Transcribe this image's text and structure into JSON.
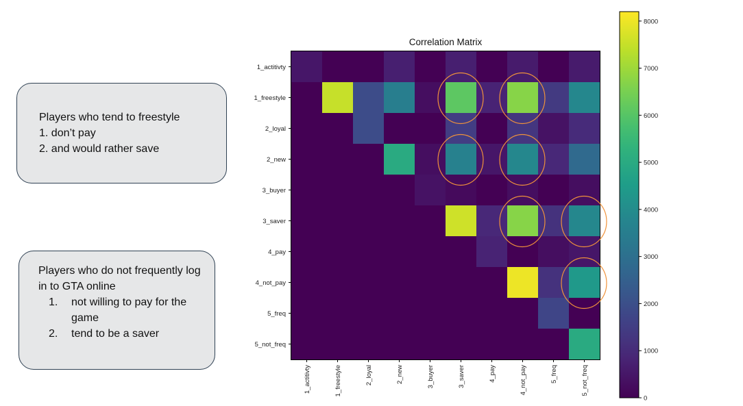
{
  "slide_title_fragment_color": "#f0a020",
  "callouts": {
    "box1": {
      "heading": "Players who tend to freestyle",
      "items": [
        "1. don’t pay",
        "2. and would rather save"
      ]
    },
    "box2": {
      "heading": "Players who do not frequently log in to GTA online",
      "items": [
        {
          "num": "1.",
          "text": "not willing to pay for the game"
        },
        {
          "num": "2.",
          "text": "tend to be a saver"
        }
      ]
    }
  },
  "highlight_color": "#f0923b",
  "chart_data": {
    "type": "heatmap",
    "title": "Correlation Matrix",
    "colormap": "viridis",
    "rows": [
      "1_actitivty",
      "1_freestyle",
      "2_loyal",
      "2_new",
      "3_buyer",
      "3_saver",
      "4_pay",
      "4_not_pay",
      "5_freq",
      "5_not_freq"
    ],
    "columns": [
      "1_actitivty",
      "1_freestyle",
      "2_loyal",
      "2_new",
      "3_buyer",
      "3_saver",
      "4_pay",
      "4_not_pay",
      "5_freq",
      "5_not_freq"
    ],
    "values": [
      [
        500,
        0,
        0,
        700,
        0,
        700,
        0,
        600,
        0,
        600
      ],
      [
        0,
        7500,
        1900,
        3500,
        300,
        6100,
        800,
        6700,
        1400,
        3800
      ],
      [
        0,
        0,
        1900,
        0,
        0,
        1500,
        0,
        1300,
        400,
        1000
      ],
      [
        0,
        0,
        0,
        5000,
        300,
        3600,
        500,
        3800,
        900,
        2800
      ],
      [
        0,
        0,
        0,
        0,
        400,
        200,
        0,
        300,
        0,
        300
      ],
      [
        0,
        0,
        0,
        0,
        0,
        7600,
        900,
        6700,
        1200,
        3800
      ],
      [
        0,
        0,
        0,
        0,
        0,
        0,
        800,
        0,
        300,
        500
      ],
      [
        0,
        0,
        0,
        0,
        0,
        0,
        0,
        8000,
        1200,
        4400
      ],
      [
        0,
        0,
        0,
        0,
        0,
        0,
        0,
        0,
        1700,
        0
      ],
      [
        0,
        0,
        0,
        0,
        0,
        0,
        0,
        0,
        0,
        5000
      ]
    ],
    "highlighted_cells": [
      [
        1,
        5
      ],
      [
        1,
        7
      ],
      [
        3,
        5
      ],
      [
        3,
        7
      ],
      [
        5,
        7
      ],
      [
        5,
        9
      ],
      [
        7,
        9
      ]
    ],
    "colorbar": {
      "min": 0,
      "max": 8200,
      "ticks": [
        0,
        1000,
        2000,
        3000,
        4000,
        5000,
        6000,
        7000,
        8000
      ]
    }
  }
}
